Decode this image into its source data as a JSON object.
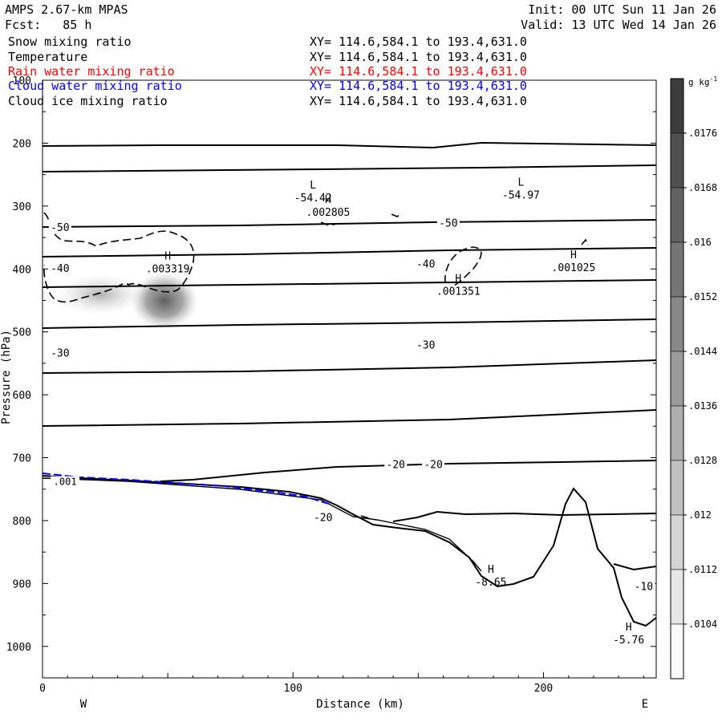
{
  "header": {
    "model": "AMPS 2.67-km MPAS",
    "fcst": "Fcst:   85 h",
    "init": "Init: 00 UTC Sun 11 Jan 26",
    "valid": "Valid: 13 UTC Wed 14 Jan 26"
  },
  "fields": [
    {
      "name": "Snow mixing ratio",
      "xy": "XY= 114.6,584.1 to 193.4,631.0",
      "color": "#000000"
    },
    {
      "name": "Temperature",
      "xy": "XY= 114.6,584.1 to 193.4,631.0",
      "color": "#000000"
    },
    {
      "name": "Rain water mixing ratio",
      "xy": "XY= 114.6,584.1 to 193.4,631.0",
      "color": "#ff0000"
    },
    {
      "name": "Cloud water mixing ratio",
      "xy": "XY= 114.6,584.1 to 193.4,631.0",
      "color": "#0000ff"
    },
    {
      "name": "Cloud ice mixing ratio",
      "xy": "XY= 114.6,584.1 to 193.4,631.0",
      "color": "#000000"
    }
  ],
  "chart_data": {
    "type": "cross-section",
    "xlabel": "Distance (km)",
    "ylabel": "Pressure (hPa)",
    "xlim": [
      0,
      245
    ],
    "ylim": [
      1050,
      100
    ],
    "x_ticks": [
      0,
      100,
      200
    ],
    "y_ticks": [
      100,
      200,
      300,
      400,
      500,
      600,
      700,
      800,
      900,
      1000
    ],
    "orientation": {
      "left": "W",
      "right": "E"
    },
    "colorbar": {
      "unit": "g kg",
      "unit_exp": "-1",
      "tick_labels": [
        ".0176",
        ".0168",
        ".016",
        ".0152",
        ".0144",
        ".0136",
        ".0128",
        ".012",
        ".0112",
        ".0104"
      ]
    },
    "temperature_contour_labels": [
      {
        "x": 7,
        "p": 337,
        "text": "-50"
      },
      {
        "x": 162,
        "p": 330,
        "text": "-50"
      },
      {
        "x": 7,
        "p": 402,
        "text": "-40"
      },
      {
        "x": 153,
        "p": 395,
        "text": "-40"
      },
      {
        "x": 7,
        "p": 537,
        "text": "-30"
      },
      {
        "x": 153,
        "p": 524,
        "text": "-30"
      },
      {
        "x": 141,
        "p": 714,
        "text": "-20"
      },
      {
        "x": 156,
        "p": 714,
        "text": "-20"
      },
      {
        "x": 112,
        "p": 798,
        "text": "-20"
      },
      {
        "x": 240,
        "p": 908,
        "text": "-10"
      }
    ],
    "extrema": [
      {
        "type": "L",
        "value": "-54.42",
        "x": 108,
        "p": 277
      },
      {
        "type": "L",
        "value": "-54.97",
        "x": 191,
        "p": 273
      },
      {
        "type": "H",
        "value": ".002805",
        "x": 114,
        "p": 300
      },
      {
        "type": "H",
        "value": ".003319",
        "x": 50,
        "p": 390
      },
      {
        "type": "H",
        "value": ".001351",
        "x": 166,
        "p": 426
      },
      {
        "type": "H",
        "value": ".001025",
        "x": 212,
        "p": 388
      },
      {
        "type": "H",
        "value": "-8.65",
        "x": 179,
        "p": 888
      },
      {
        "type": "H",
        "value": "-5.76",
        "x": 234,
        "p": 980
      }
    ],
    "snow_labels": [
      {
        "x": 9,
        "p": 741,
        "text": ".001"
      }
    ],
    "snow_max_gkg": 0.0104
  }
}
